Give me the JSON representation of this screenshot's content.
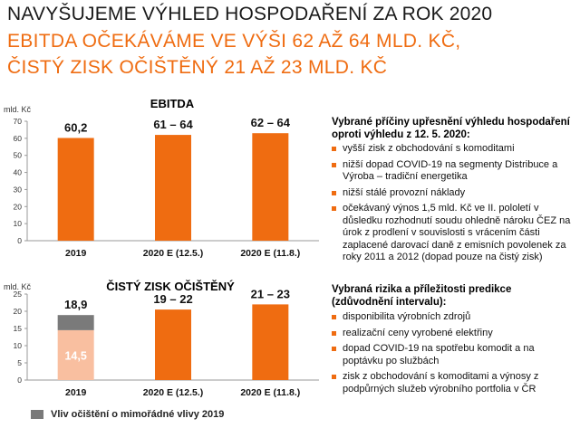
{
  "header": {
    "line1": "NAVYŠUJEME VÝHLED HOSPODAŘENÍ ZA ROK 2020",
    "line2": "EBITDA OČEKÁVÁME VE VÝŠI 62 AŽ 64 MLD. KČ,",
    "line3": "ČISTÝ ZISK OČIŠTĚNÝ 21 AŽ 23 MLD. KČ"
  },
  "colors": {
    "accent": "#ef6c11",
    "light_accent": "#f9bfa0",
    "grey": "#7a7a7a"
  },
  "chart_data": [
    {
      "type": "bar",
      "title": "EBITDA",
      "ylabel": "mld. Kč",
      "ylim": [
        0,
        70
      ],
      "yticks": [
        "0",
        "10",
        "20",
        "30",
        "40",
        "50",
        "60",
        "70"
      ],
      "categories": [
        "2019",
        "2020 E (12.5.)",
        "2020 E (11.8.)"
      ],
      "values": [
        60.2,
        62,
        63
      ],
      "data_labels": [
        "60,2",
        "61 – 64",
        "62 – 64"
      ],
      "grid": false
    },
    {
      "type": "bar",
      "title": "ČISTÝ ZISK OČIŠTĚNÝ",
      "ylabel": "mld. Kč",
      "ylim": [
        0,
        25
      ],
      "yticks": [
        "0",
        "5",
        "10",
        "15",
        "20",
        "25"
      ],
      "categories": [
        "2019",
        "2020 E (12.5.)",
        "2020 E (11.8.)"
      ],
      "values": [
        14.5,
        20.5,
        22
      ],
      "stacked_extra": [
        4.4,
        0,
        0
      ],
      "data_labels": [
        "18,9",
        "19 – 22",
        "21 – 23"
      ],
      "inner_labels": [
        "14,5",
        "",
        ""
      ],
      "legend": [
        "Vliv očištění o mimořádné vlivy 2019"
      ],
      "grid": false
    }
  ],
  "panel1": {
    "heading": "Vybrané příčiny upřesnění výhledu hospodaření oproti výhledu z 12. 5. 2020:",
    "items": [
      "vyšší zisk z obchodování s komoditami",
      "nižší dopad COVID-19 na segmenty Distribuce a Výroba – tradiční energetika",
      "nižší stálé provozní náklady",
      "očekávaný výnos 1,5 mld. Kč ve II. pololetí v důsledku rozhodnutí soudu ohledně nároku ČEZ na úrok z prodlení v souvislosti s vrácením části zaplacené darovací daně z emisních povolenek za roky 2011 a 2012 (dopad pouze na čistý zisk)"
    ]
  },
  "panel2": {
    "heading": "Vybraná rizika a příležitosti predikce (zdůvodnění intervalu):",
    "items": [
      "disponibilita výrobních zdrojů",
      "realizační ceny vyrobené elektřiny",
      "dopad COVID-19 na spotřebu komodit a na poptávku po službách",
      "zisk z obchodování s komoditami a výnosy z podpůrných služeb výrobního portfolia v ČR"
    ]
  },
  "legend": {
    "label": "Vliv očištění o mimořádné vlivy 2019"
  }
}
